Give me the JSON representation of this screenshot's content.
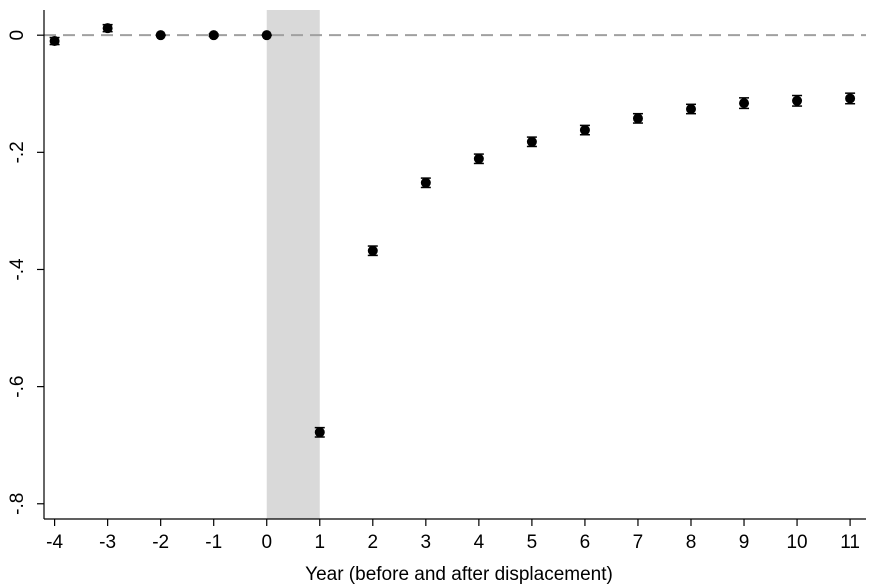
{
  "chart_data": {
    "type": "scatter",
    "title": "",
    "xlabel": "Year (before and after displacement)",
    "ylabel": "",
    "x_ticks": [
      "-4",
      "-3",
      "-2",
      "-1",
      "0",
      "1",
      "2",
      "3",
      "4",
      "5",
      "6",
      "7",
      "8",
      "9",
      "10",
      "11"
    ],
    "y_ticks": [
      "0",
      "-.2",
      "-.4",
      "-.6",
      "-.8"
    ],
    "xlim": [
      -4.2,
      11.3
    ],
    "ylim": [
      -0.826,
      0.043
    ],
    "reference_line": {
      "y": 0,
      "style": "dashed",
      "color": "#a0a0a0"
    },
    "shaded_band": {
      "x_from": 0,
      "x_to": 1,
      "color": "#d9d9d9"
    },
    "grid": false,
    "series": [
      {
        "marker_color": "#000000",
        "points": [
          {
            "x": -4,
            "y": -0.01,
            "ci": [
              -0.016,
              -0.004
            ]
          },
          {
            "x": -3,
            "y": 0.012,
            "ci": [
              0.006,
              0.018
            ]
          },
          {
            "x": -2,
            "y": 0.0,
            "ci": [
              0.0,
              0.0
            ]
          },
          {
            "x": -1,
            "y": 0.0,
            "ci": [
              -0.002,
              0.002
            ]
          },
          {
            "x": 0,
            "y": 0.0,
            "ci": [
              0.0,
              0.0
            ]
          },
          {
            "x": 1,
            "y": -0.678,
            "ci": [
              -0.686,
              -0.67
            ]
          },
          {
            "x": 2,
            "y": -0.368,
            "ci": [
              -0.376,
              -0.36
            ]
          },
          {
            "x": 3,
            "y": -0.252,
            "ci": [
              -0.26,
              -0.244
            ]
          },
          {
            "x": 4,
            "y": -0.211,
            "ci": [
              -0.219,
              -0.203
            ]
          },
          {
            "x": 5,
            "y": -0.182,
            "ci": [
              -0.19,
              -0.174
            ]
          },
          {
            "x": 6,
            "y": -0.162,
            "ci": [
              -0.17,
              -0.154
            ]
          },
          {
            "x": 7,
            "y": -0.142,
            "ci": [
              -0.15,
              -0.134
            ]
          },
          {
            "x": 8,
            "y": -0.126,
            "ci": [
              -0.134,
              -0.118
            ]
          },
          {
            "x": 9,
            "y": -0.116,
            "ci": [
              -0.125,
              -0.107
            ]
          },
          {
            "x": 10,
            "y": -0.112,
            "ci": [
              -0.121,
              -0.103
            ]
          },
          {
            "x": 11,
            "y": -0.108,
            "ci": [
              -0.117,
              -0.099
            ]
          }
        ]
      }
    ]
  }
}
